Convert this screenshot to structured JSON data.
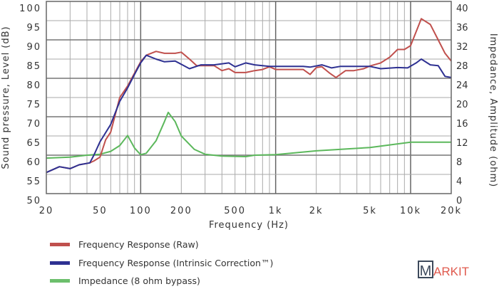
{
  "chart_data": {
    "type": "line",
    "xscale": "log",
    "xlabel": "Frequency (Hz)",
    "ylabel": "Sound pressure, Level (dB)",
    "y2label": "Impedance, Amplitude (ohm)",
    "xlim": [
      20,
      20000
    ],
    "ylim": [
      50,
      100
    ],
    "y2lim": [
      0,
      40
    ],
    "grid": true,
    "legend_position": "bottom-left",
    "x_ticks": [
      {
        "v": 20,
        "label": "20"
      },
      {
        "v": 50,
        "label": "50"
      },
      {
        "v": 100,
        "label": "100"
      },
      {
        "v": 200,
        "label": "200"
      },
      {
        "v": 500,
        "label": "500"
      },
      {
        "v": 1000,
        "label": "1k"
      },
      {
        "v": 2000,
        "label": "2k"
      },
      {
        "v": 5000,
        "label": "5k"
      },
      {
        "v": 10000,
        "label": "10k"
      },
      {
        "v": 20000,
        "label": "20k"
      }
    ],
    "y_ticks": [
      "100",
      "95",
      "90",
      "85",
      "80",
      "75",
      "70",
      "65",
      "60",
      "55",
      "50"
    ],
    "y2_ticks": [
      "40",
      "36",
      "32",
      "28",
      "24",
      "20",
      "16",
      "12",
      "8",
      "4",
      "0"
    ],
    "series": [
      {
        "name": "Frequency Response (Raw)",
        "color": "#c0504d",
        "axis": "left",
        "points": [
          [
            20,
            55.5
          ],
          [
            25,
            57
          ],
          [
            30,
            56.5
          ],
          [
            35,
            57.5
          ],
          [
            42,
            58
          ],
          [
            45,
            58.5
          ],
          [
            50,
            59.5
          ],
          [
            55,
            64
          ],
          [
            60,
            66
          ],
          [
            70,
            75
          ],
          [
            80,
            78
          ],
          [
            100,
            84.3
          ],
          [
            110,
            86
          ],
          [
            130,
            87
          ],
          [
            150,
            86.5
          ],
          [
            180,
            86.5
          ],
          [
            200,
            86.8
          ],
          [
            230,
            85
          ],
          [
            260,
            83.3
          ],
          [
            350,
            83.3
          ],
          [
            400,
            82
          ],
          [
            450,
            82.5
          ],
          [
            500,
            81.5
          ],
          [
            600,
            81.5
          ],
          [
            700,
            82
          ],
          [
            800,
            82.3
          ],
          [
            900,
            83
          ],
          [
            1000,
            82.3
          ],
          [
            1600,
            82.3
          ],
          [
            1800,
            81
          ],
          [
            2000,
            82.8
          ],
          [
            2200,
            83
          ],
          [
            2500,
            81.4
          ],
          [
            2800,
            80.2
          ],
          [
            3300,
            82
          ],
          [
            3800,
            82
          ],
          [
            4500,
            82.5
          ],
          [
            5000,
            83.2
          ],
          [
            6000,
            84
          ],
          [
            7000,
            85.5
          ],
          [
            8000,
            87.5
          ],
          [
            9000,
            87.5
          ],
          [
            10000,
            88.5
          ],
          [
            12000,
            95.5
          ],
          [
            14000,
            94
          ],
          [
            16000,
            90
          ],
          [
            18000,
            86.5
          ],
          [
            20000,
            84.5
          ]
        ]
      },
      {
        "name": "Frequency Response (Intrinsic Correction™)",
        "color": "#2e3192",
        "axis": "left",
        "points": [
          [
            20,
            55.5
          ],
          [
            25,
            57
          ],
          [
            30,
            56.5
          ],
          [
            35,
            57.5
          ],
          [
            42,
            58
          ],
          [
            45,
            60
          ],
          [
            50,
            63.5
          ],
          [
            60,
            68
          ],
          [
            70,
            74
          ],
          [
            80,
            77.5
          ],
          [
            90,
            81
          ],
          [
            100,
            84
          ],
          [
            110,
            86
          ],
          [
            130,
            85
          ],
          [
            150,
            84.3
          ],
          [
            180,
            84.5
          ],
          [
            230,
            82.5
          ],
          [
            280,
            83.5
          ],
          [
            350,
            83.5
          ],
          [
            450,
            84
          ],
          [
            500,
            83
          ],
          [
            600,
            84
          ],
          [
            700,
            83.5
          ],
          [
            900,
            83.1
          ],
          [
            1600,
            83.1
          ],
          [
            1800,
            82.9
          ],
          [
            2200,
            83.5
          ],
          [
            2600,
            82.7
          ],
          [
            3000,
            83.1
          ],
          [
            5000,
            83.1
          ],
          [
            6000,
            82.5
          ],
          [
            8000,
            82.8
          ],
          [
            9500,
            82.7
          ],
          [
            11000,
            84
          ],
          [
            12000,
            85
          ],
          [
            14000,
            83.5
          ],
          [
            16000,
            83.3
          ],
          [
            18000,
            80.5
          ],
          [
            20000,
            80.2
          ]
        ]
      },
      {
        "name": "Impedance (8 ohm bypass)",
        "color": "#5cb85c",
        "axis": "right",
        "points": [
          [
            20,
            7.4
          ],
          [
            30,
            7.6
          ],
          [
            40,
            8
          ],
          [
            50,
            8.2
          ],
          [
            60,
            8.8
          ],
          [
            70,
            10
          ],
          [
            80,
            12.1
          ],
          [
            90,
            9.5
          ],
          [
            100,
            8.1
          ],
          [
            110,
            8.4
          ],
          [
            130,
            11
          ],
          [
            150,
            15
          ],
          [
            160,
            16.9
          ],
          [
            180,
            15
          ],
          [
            200,
            12
          ],
          [
            250,
            9.2
          ],
          [
            300,
            8.2
          ],
          [
            400,
            7.8
          ],
          [
            600,
            7.7
          ],
          [
            700,
            8
          ],
          [
            1000,
            8.1
          ],
          [
            2000,
            8.9
          ],
          [
            5000,
            9.6
          ],
          [
            10000,
            10.7
          ],
          [
            20000,
            10.7
          ]
        ]
      }
    ]
  },
  "logo": {
    "text_m": "M",
    "text_rest": "ARKIT"
  }
}
